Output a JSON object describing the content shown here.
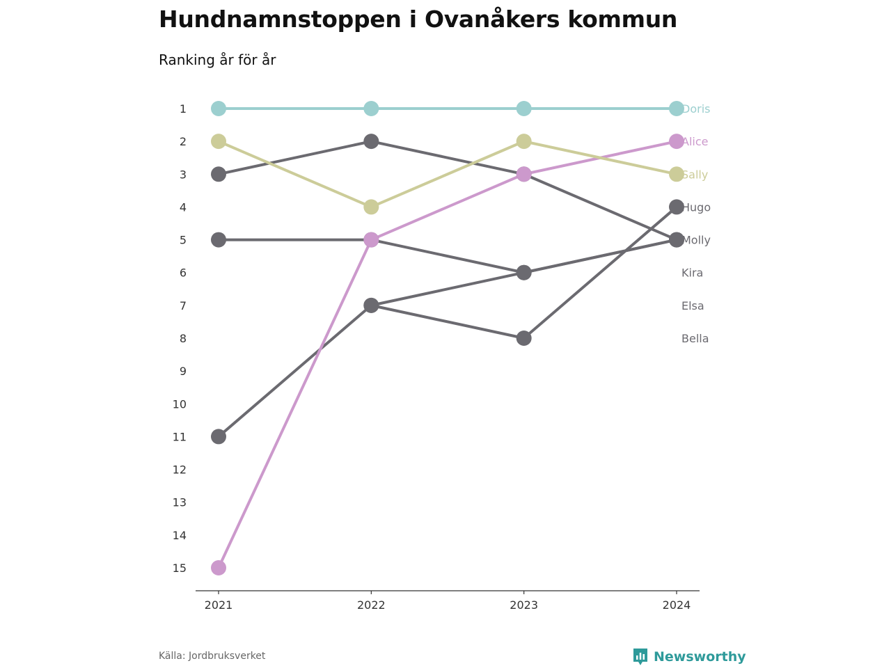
{
  "title": "Hundnamnstoppen i Ovanåkers kommun",
  "subtitle": "Ranking år för år",
  "source": "Källa: Jordbruksverket",
  "brand": {
    "name": "Newsworthy",
    "icon": "newsworthy-logo-icon",
    "color": "#2e9a9a"
  },
  "chart_data": {
    "type": "line",
    "chart_subtype": "bump",
    "x": [
      "2021",
      "2022",
      "2023",
      "2024"
    ],
    "y_ticks": [
      1,
      2,
      3,
      4,
      5,
      6,
      7,
      8,
      9,
      10,
      11,
      12,
      13,
      14,
      15
    ],
    "ylim": [
      1,
      15
    ],
    "y_inverted": true,
    "grid": false,
    "legend": "right-end labels",
    "series": [
      {
        "name": "Doris",
        "values": [
          1,
          1,
          1,
          1
        ],
        "color": "#9ccfcf"
      },
      {
        "name": "Alice",
        "values": [
          15,
          5,
          3,
          2
        ],
        "color": "#cc99cc"
      },
      {
        "name": "Sally",
        "values": [
          2,
          4,
          2,
          3
        ],
        "color": "#cccc99"
      },
      {
        "name": "Hugo",
        "values": [
          11,
          7,
          8,
          4
        ],
        "color": "#6b6a70"
      },
      {
        "name": "Molly",
        "values": [
          3,
          2,
          3,
          5
        ],
        "color": "#6b6a70"
      },
      {
        "name": "Kira",
        "values": [
          null,
          7,
          6,
          5
        ],
        "color": "#6b6a70"
      },
      {
        "name": "Elsa",
        "values": [
          5,
          5,
          6,
          5
        ],
        "color": "#6b6a70"
      },
      {
        "name": "Bella",
        "values": [
          null,
          null,
          null,
          null
        ],
        "color": "#6b6a70"
      }
    ],
    "end_labels": [
      "Doris",
      "Alice",
      "Sally",
      "Hugo",
      "Molly",
      "Kira",
      "Elsa",
      "Bella"
    ]
  }
}
